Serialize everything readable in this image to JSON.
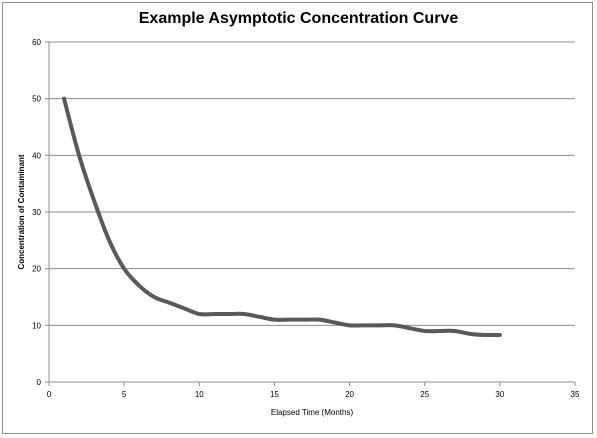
{
  "chart_data": {
    "type": "line",
    "title": "Example Asymptotic Concentration Curve",
    "xlabel": "Elapsed Time (Months)",
    "ylabel": "Concentration of Contaminant",
    "xlim": [
      0,
      35
    ],
    "ylim": [
      0,
      60
    ],
    "xticks": [
      0,
      5,
      10,
      15,
      20,
      25,
      30,
      35
    ],
    "yticks": [
      0,
      10,
      20,
      30,
      40,
      50,
      60
    ],
    "grid": "horizontal",
    "legend": "none",
    "series": [
      {
        "color": "#595959",
        "x": [
          1,
          2,
          3,
          4,
          5,
          6,
          7,
          8,
          9,
          10,
          11,
          12,
          13,
          14,
          15,
          16,
          17,
          18,
          19,
          20,
          21,
          22,
          23,
          24,
          25,
          26,
          27,
          28,
          29,
          30
        ],
        "y": [
          50,
          40,
          32,
          25,
          20,
          17,
          15,
          14,
          13,
          12,
          12,
          12,
          12,
          11.5,
          11,
          11,
          11,
          11,
          10.5,
          10,
          10,
          10,
          10,
          9.5,
          9,
          9,
          9,
          8.5,
          8.3,
          8.3
        ]
      }
    ]
  }
}
